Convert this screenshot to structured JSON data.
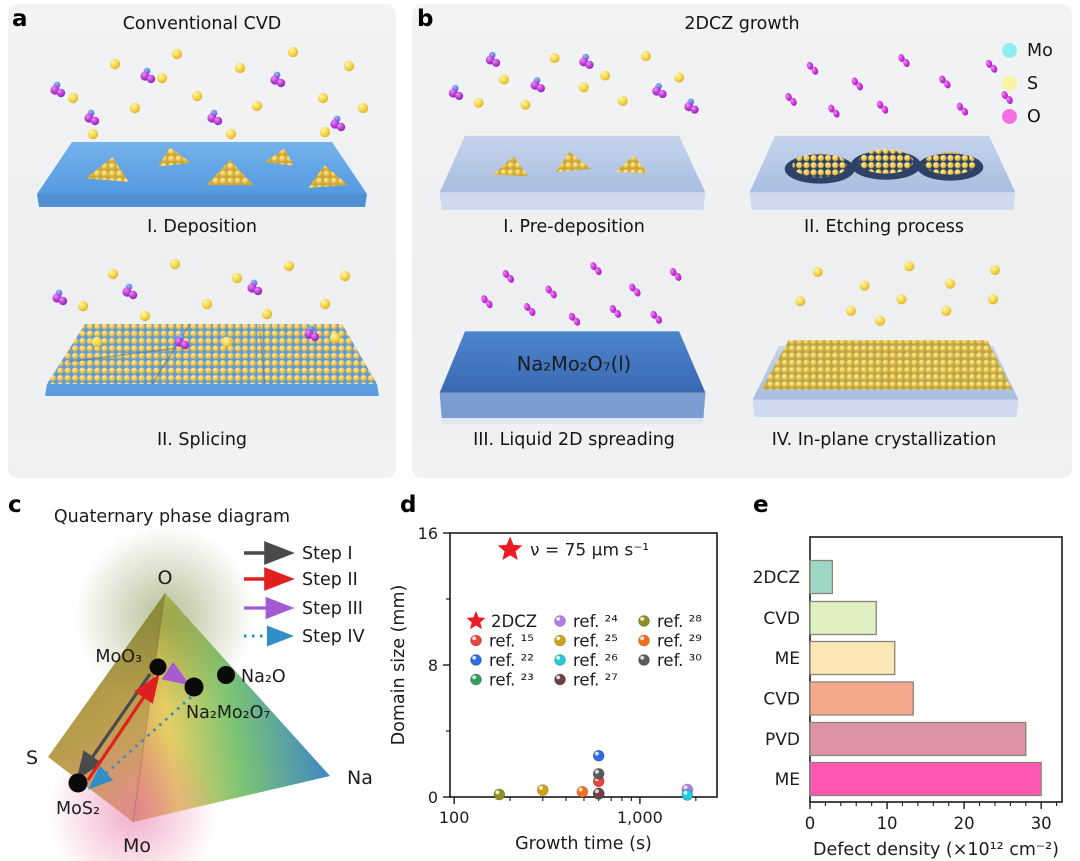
{
  "panel_a": {
    "label": "a",
    "title": "Conventional CVD",
    "steps": [
      {
        "caption": "I. Deposition"
      },
      {
        "caption": "II. Splicing"
      }
    ]
  },
  "panel_b": {
    "label": "b",
    "title": "2DCZ growth",
    "legend": [
      {
        "label": "Mo",
        "color": "#8ef0ee"
      },
      {
        "label": "S",
        "color": "#f8f4a2"
      },
      {
        "label": "O",
        "color": "#f56fe2"
      }
    ],
    "steps": [
      {
        "caption": "I. Pre-deposition"
      },
      {
        "caption": "II. Etching process"
      },
      {
        "caption": "III. Liquid 2D spreading",
        "liquid_label": "Na₂Mo₂O₇(l)"
      },
      {
        "caption": "IV. In-plane crystallization"
      }
    ]
  },
  "panel_c": {
    "label": "c",
    "title": "Quaternary phase diagram",
    "legend": [
      {
        "label": "Step I",
        "color": "#4a4a4a",
        "style": "solid"
      },
      {
        "label": "Step II",
        "color": "#e01f1f",
        "style": "solid"
      },
      {
        "label": "Step III",
        "color": "#a55ad2",
        "style": "solid"
      },
      {
        "label": "Step IV",
        "color": "#2f8fc6",
        "style": "dashed"
      }
    ],
    "vertices": {
      "top": "O",
      "left": "S",
      "right": "Na",
      "bottom": "Mo"
    },
    "points": {
      "moo3": "MoO₃",
      "na2o": "Na₂O",
      "na2mo2o7": "Na₂Mo₂O₇",
      "mos2": "MoS₂"
    }
  },
  "panel_d": {
    "label": "d"
  },
  "panel_e": {
    "label": "e"
  },
  "chart_data": [
    {
      "type": "scatter",
      "xlabel": "Growth time (s)",
      "ylabel": "Domain size (mm)",
      "xscale": "log",
      "xlim": [
        95,
        2600
      ],
      "ylim": [
        0,
        16
      ],
      "xticks": [
        100,
        1000
      ],
      "xtick_labels": [
        "100",
        "1,000"
      ],
      "minor_xticks": [
        200,
        300,
        400,
        500,
        600,
        700,
        800,
        900,
        2000
      ],
      "yticks": [
        0,
        8,
        16
      ],
      "minor_yticks": [
        4,
        12
      ],
      "star": {
        "label": "2DCZ",
        "x": 200,
        "y": 15,
        "color": "#ed1c24"
      },
      "annotation": {
        "text": "ν = 75 μm s⁻¹",
        "color": "#ed1c24"
      },
      "series": [
        {
          "name": "ref. ¹⁵",
          "color": "#e8463c",
          "points": [
            [
              600,
              0.95
            ]
          ]
        },
        {
          "name": "ref. ²²",
          "color": "#2f6be0",
          "points": [
            [
              600,
              2.5
            ]
          ]
        },
        {
          "name": "ref. ²³",
          "color": "#319e5a",
          "points": [
            [
              600,
              0.18
            ]
          ]
        },
        {
          "name": "ref. ²⁴",
          "color": "#b27de8",
          "points": [
            [
              1800,
              0.45
            ]
          ]
        },
        {
          "name": "ref. ²⁵",
          "color": "#cfa21a",
          "points": [
            [
              300,
              0.42
            ]
          ]
        },
        {
          "name": "ref. ²⁶",
          "color": "#27c8d8",
          "points": [
            [
              1800,
              0.12
            ]
          ]
        },
        {
          "name": "ref. ²⁷",
          "color": "#6e3f49",
          "points": [
            [
              600,
              0.22
            ]
          ]
        },
        {
          "name": "ref. ²⁸",
          "color": "#8f8f23",
          "points": [
            [
              175,
              0.15
            ]
          ]
        },
        {
          "name": "ref. ²⁹",
          "color": "#f07020",
          "points": [
            [
              490,
              0.32
            ]
          ]
        },
        {
          "name": "ref. ³⁰",
          "color": "#5b5b5b",
          "points": [
            [
              600,
              1.4
            ]
          ]
        }
      ],
      "legend_columns": [
        [
          -1,
          0,
          1,
          2
        ],
        [
          3,
          4,
          5,
          6
        ],
        [
          7,
          8,
          9
        ]
      ]
    },
    {
      "type": "bar",
      "orientation": "horizontal",
      "categories": [
        "2DCZ",
        "CVD",
        "ME",
        "CVD",
        "PVD",
        "ME"
      ],
      "values": [
        2.9,
        8.6,
        11,
        13.4,
        28,
        30
      ],
      "colors": [
        "#9ed7c4",
        "#def0c0",
        "#fbe6b6",
        "#f5a88c",
        "#df93a3",
        "#ff57b2"
      ],
      "bar_border": "#8a8578",
      "xlabel": "Defect density (×10¹² cm⁻²)",
      "xticks": [
        0,
        10,
        20,
        30
      ],
      "xlim": [
        0,
        32.7
      ],
      "grid": false
    }
  ]
}
